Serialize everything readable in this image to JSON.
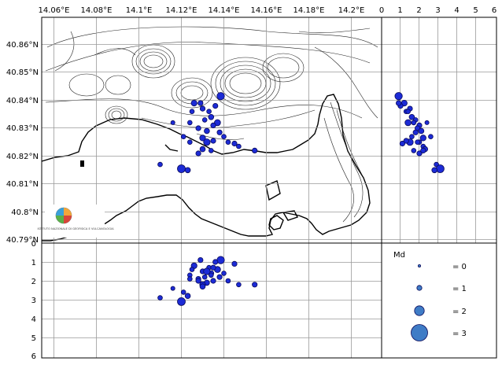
{
  "map": {
    "lon_ticks": [
      "14.06°E",
      "14.08°E",
      "14.1°E",
      "14.12°E",
      "14.14°E",
      "14.16°E",
      "14.18°E",
      "14.2°E"
    ],
    "lat_ticks": [
      "40.86°N",
      "40.85°N",
      "40.84°N",
      "40.83°N",
      "40.82°N",
      "40.81°N",
      "40.8°N",
      "40.79°N"
    ],
    "logo_text": "ISTITUTO NAZIONALE DI GEOFISICA E VULCANOLOGIA"
  },
  "side_depth_ticks": [
    "0",
    "1",
    "2",
    "3",
    "4",
    "5",
    "6"
  ],
  "bottom_depth_ticks": [
    "0",
    "1",
    "2",
    "3",
    "4",
    "5",
    "6"
  ],
  "legend": {
    "title": "Md",
    "items": [
      {
        "magnitude": 0,
        "label": "= 0"
      },
      {
        "magnitude": 1,
        "label": "= 1"
      },
      {
        "magnitude": 2,
        "label": "= 2"
      },
      {
        "magnitude": 3,
        "label": "= 3"
      }
    ]
  },
  "colors": {
    "quake_fill": "#1c2bd6",
    "legend_fill": "#3f7cc6",
    "grid": "#9a9a9a"
  },
  "chart_data": {
    "type": "scatter",
    "x_axis": "longitude",
    "y_axis": "latitude",
    "lon_range": [
      14.052,
      14.217
    ],
    "lat_range": [
      40.787,
      40.868
    ],
    "depth_range_km": [
      0,
      6
    ],
    "magnitude_legend": [
      0,
      1,
      2,
      3
    ],
    "events": [
      {
        "lon": 14.1385,
        "lat": 40.8415,
        "depth": 0.9,
        "md": 1.2
      },
      {
        "lon": 14.126,
        "lat": 40.839,
        "depth": 1.2,
        "md": 0.8
      },
      {
        "lon": 14.13,
        "lat": 40.837,
        "depth": 1.5,
        "md": 0.6
      },
      {
        "lon": 14.133,
        "lat": 40.836,
        "depth": 1.3,
        "md": 0.5
      },
      {
        "lon": 14.136,
        "lat": 40.838,
        "depth": 1.0,
        "md": 0.6
      },
      {
        "lon": 14.134,
        "lat": 40.834,
        "depth": 1.6,
        "md": 0.7
      },
      {
        "lon": 14.131,
        "lat": 40.833,
        "depth": 1.8,
        "md": 0.5
      },
      {
        "lon": 14.137,
        "lat": 40.832,
        "depth": 1.4,
        "md": 0.9
      },
      {
        "lon": 14.135,
        "lat": 40.831,
        "depth": 2.0,
        "md": 0.6
      },
      {
        "lon": 14.124,
        "lat": 40.832,
        "depth": 1.7,
        "md": 0.5
      },
      {
        "lon": 14.128,
        "lat": 40.83,
        "depth": 1.9,
        "md": 0.6
      },
      {
        "lon": 14.132,
        "lat": 40.829,
        "depth": 2.1,
        "md": 0.7
      },
      {
        "lon": 14.138,
        "lat": 40.8285,
        "depth": 1.8,
        "md": 0.6
      },
      {
        "lon": 14.14,
        "lat": 40.827,
        "depth": 1.6,
        "md": 0.5
      },
      {
        "lon": 14.13,
        "lat": 40.8265,
        "depth": 2.2,
        "md": 0.8
      },
      {
        "lon": 14.132,
        "lat": 40.825,
        "depth": 1.5,
        "md": 1.0
      },
      {
        "lon": 14.135,
        "lat": 40.8255,
        "depth": 1.3,
        "md": 0.6
      },
      {
        "lon": 14.142,
        "lat": 40.825,
        "depth": 2.0,
        "md": 0.5
      },
      {
        "lon": 14.145,
        "lat": 40.8245,
        "depth": 1.1,
        "md": 0.6
      },
      {
        "lon": 14.147,
        "lat": 40.8235,
        "depth": 2.2,
        "md": 0.5
      },
      {
        "lon": 14.13,
        "lat": 40.8225,
        "depth": 2.3,
        "md": 0.7
      },
      {
        "lon": 14.134,
        "lat": 40.822,
        "depth": 1.7,
        "md": 0.5
      },
      {
        "lon": 14.128,
        "lat": 40.821,
        "depth": 2.0,
        "md": 0.6
      },
      {
        "lon": 14.1545,
        "lat": 40.822,
        "depth": 2.2,
        "md": 0.6
      },
      {
        "lon": 14.124,
        "lat": 40.825,
        "depth": 1.9,
        "md": 0.5
      },
      {
        "lon": 14.121,
        "lat": 40.827,
        "depth": 2.6,
        "md": 0.5
      },
      {
        "lon": 14.11,
        "lat": 40.817,
        "depth": 2.9,
        "md": 0.5
      },
      {
        "lon": 14.12,
        "lat": 40.8155,
        "depth": 3.1,
        "md": 1.3
      },
      {
        "lon": 14.123,
        "lat": 40.815,
        "depth": 2.8,
        "md": 0.7
      },
      {
        "lon": 14.116,
        "lat": 40.832,
        "depth": 2.4,
        "md": 0.4
      },
      {
        "lon": 14.125,
        "lat": 40.836,
        "depth": 1.4,
        "md": 0.5
      },
      {
        "lon": 14.129,
        "lat": 40.839,
        "depth": 0.9,
        "md": 0.6
      }
    ]
  }
}
